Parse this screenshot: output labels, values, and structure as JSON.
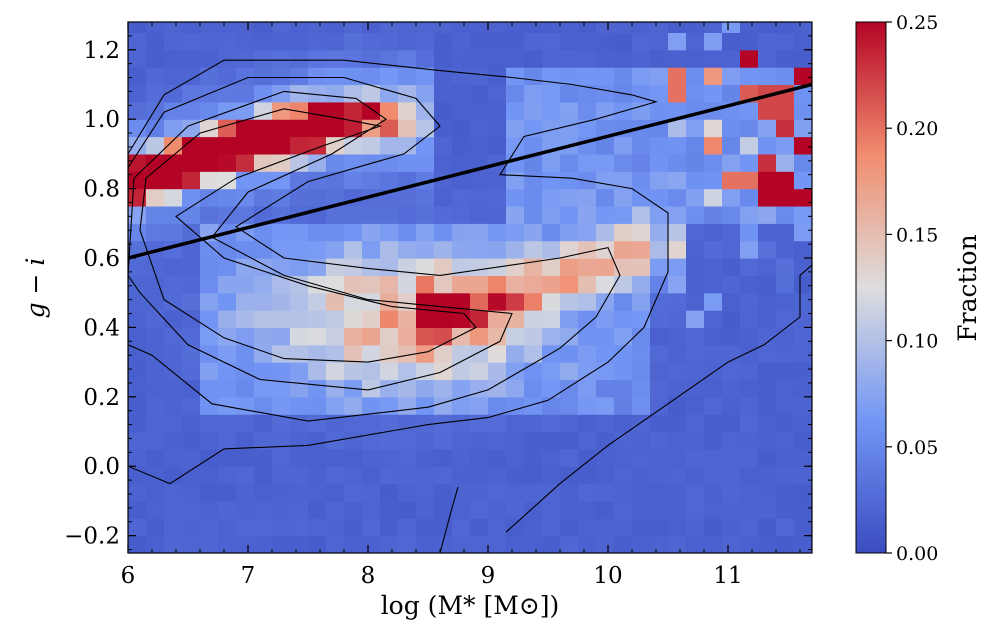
{
  "chart_data": {
    "type": "heatmap",
    "title": "",
    "xlabel": "log (M* [M⊙])",
    "ylabel": "g − i",
    "colorbar_label": "Fraction",
    "xlim": [
      6.0,
      11.7
    ],
    "ylim": [
      -0.25,
      1.28
    ],
    "clim": [
      0.0,
      0.25
    ],
    "colormap": "coolwarm",
    "x_ticks": [
      6,
      7,
      8,
      9,
      10,
      11
    ],
    "x_tick_labels": [
      "6",
      "7",
      "8",
      "9",
      "10",
      "11"
    ],
    "y_ticks": [
      -0.2,
      0.0,
      0.2,
      0.4,
      0.6,
      0.8,
      1.0,
      1.2
    ],
    "y_tick_labels": [
      "−0.2",
      "0.0",
      "0.2",
      "0.4",
      "0.6",
      "0.8",
      "1.0",
      "1.2"
    ],
    "colorbar_ticks": [
      0.0,
      0.05,
      0.1,
      0.15,
      0.2,
      0.25
    ],
    "colorbar_tick_labels": [
      "0.00",
      "0.05",
      "0.10",
      "0.15",
      "0.20",
      "0.25"
    ],
    "heatmap_bins": {
      "x_start": 6.0,
      "dx": 0.15,
      "nx": 38,
      "y_start": -0.25,
      "dy": 0.05,
      "ny": 31
    },
    "red_sequence_ridge": [
      [
        6.0,
        0.82
      ],
      [
        6.5,
        0.88
      ],
      [
        7.0,
        0.93
      ],
      [
        7.5,
        0.98
      ],
      [
        8.0,
        1.0
      ],
      [
        8.3,
        1.0
      ]
    ],
    "blue_cloud_center": [
      8.3,
      0.42
    ],
    "blue_cloud_tail": [
      [
        8.6,
        0.45
      ],
      [
        9.0,
        0.48
      ],
      [
        9.4,
        0.52
      ],
      [
        9.8,
        0.58
      ],
      [
        10.2,
        0.63
      ]
    ],
    "hot_bins": [
      {
        "x": 11.2,
        "y": 1.17,
        "v": 0.25
      },
      {
        "x": 11.6,
        "y": 1.12,
        "v": 0.25
      },
      {
        "x": 11.4,
        "y": 1.05,
        "v": 0.22
      },
      {
        "x": 11.5,
        "y": 0.98,
        "v": 0.23
      },
      {
        "x": 11.6,
        "y": 0.92,
        "v": 0.25
      },
      {
        "x": 11.3,
        "y": 0.88,
        "v": 0.23
      },
      {
        "x": 11.1,
        "y": 0.82,
        "v": 0.2
      },
      {
        "x": 11.6,
        "y": 0.78,
        "v": 0.25
      },
      {
        "x": 11.5,
        "y": 0.8,
        "v": 0.25
      },
      {
        "x": 11.3,
        "y": 0.8,
        "v": 0.25
      },
      {
        "x": 11.2,
        "y": 1.07,
        "v": 0.21
      },
      {
        "x": 10.9,
        "y": 0.93,
        "v": 0.19
      },
      {
        "x": 10.6,
        "y": 1.1,
        "v": 0.2
      },
      {
        "x": 10.9,
        "y": 1.12,
        "v": 0.18
      }
    ],
    "dividing_line": {
      "x": [
        6.0,
        11.7
      ],
      "y": [
        0.6,
        1.1
      ]
    },
    "contours": [
      [
        [
          6.0,
          0.56
        ],
        [
          6.0,
          0.9
        ],
        [
          6.3,
          1.07
        ],
        [
          6.8,
          1.17
        ],
        [
          7.8,
          1.17
        ],
        [
          8.6,
          1.14
        ],
        [
          9.2,
          1.12
        ],
        [
          9.7,
          1.1
        ],
        [
          10.2,
          1.07
        ],
        [
          10.4,
          1.05
        ],
        [
          9.9,
          1.0
        ],
        [
          9.3,
          0.95
        ],
        [
          9.1,
          0.84
        ],
        [
          9.7,
          0.83
        ],
        [
          10.2,
          0.8
        ],
        [
          10.5,
          0.73
        ],
        [
          10.5,
          0.56
        ],
        [
          10.3,
          0.4
        ],
        [
          10.0,
          0.3
        ],
        [
          9.5,
          0.19
        ],
        [
          9.0,
          0.14
        ],
        [
          8.5,
          0.12
        ],
        [
          7.5,
          0.06
        ],
        [
          6.8,
          0.05
        ],
        [
          6.35,
          -0.05
        ],
        [
          6.0,
          0.0
        ]
      ],
      [
        [
          6.0,
          0.35
        ],
        [
          6.0,
          0.86
        ],
        [
          6.3,
          1.02
        ],
        [
          7.0,
          1.12
        ],
        [
          7.8,
          1.12
        ],
        [
          8.4,
          1.06
        ],
        [
          8.6,
          0.98
        ],
        [
          8.3,
          0.9
        ],
        [
          7.5,
          0.82
        ],
        [
          6.9,
          0.69
        ],
        [
          7.3,
          0.6
        ],
        [
          8.0,
          0.57
        ],
        [
          8.6,
          0.55
        ],
        [
          9.6,
          0.6
        ],
        [
          10.0,
          0.63
        ],
        [
          10.1,
          0.55
        ],
        [
          9.9,
          0.43
        ],
        [
          9.6,
          0.34
        ],
        [
          9.0,
          0.22
        ],
        [
          8.5,
          0.17
        ],
        [
          7.5,
          0.13
        ],
        [
          6.7,
          0.18
        ],
        [
          6.2,
          0.32
        ]
      ],
      [
        [
          6.0,
          0.55
        ],
        [
          6.05,
          0.83
        ],
        [
          6.5,
          0.98
        ],
        [
          7.3,
          1.08
        ],
        [
          7.9,
          1.06
        ],
        [
          8.15,
          1.0
        ],
        [
          7.7,
          0.9
        ],
        [
          7.0,
          0.79
        ],
        [
          6.7,
          0.66
        ],
        [
          7.3,
          0.55
        ],
        [
          8.0,
          0.48
        ],
        [
          8.6,
          0.46
        ],
        [
          9.2,
          0.44
        ],
        [
          9.1,
          0.36
        ],
        [
          8.6,
          0.27
        ],
        [
          8.0,
          0.22
        ],
        [
          7.1,
          0.25
        ],
        [
          6.5,
          0.35
        ],
        [
          6.1,
          0.5
        ]
      ],
      [
        [
          6.15,
          0.83
        ],
        [
          6.6,
          0.96
        ],
        [
          7.3,
          1.03
        ],
        [
          7.8,
          1.0
        ],
        [
          8.1,
          0.98
        ],
        [
          7.6,
          0.92
        ],
        [
          6.9,
          0.83
        ],
        [
          6.4,
          0.72
        ],
        [
          6.8,
          0.6
        ],
        [
          7.5,
          0.52
        ],
        [
          8.2,
          0.46
        ],
        [
          8.8,
          0.44
        ],
        [
          8.9,
          0.4
        ],
        [
          8.5,
          0.33
        ],
        [
          8.0,
          0.3
        ],
        [
          7.3,
          0.31
        ],
        [
          6.8,
          0.37
        ],
        [
          6.3,
          0.48
        ],
        [
          6.1,
          0.68
        ]
      ],
      [
        [
          9.15,
          -0.19
        ],
        [
          9.6,
          -0.05
        ],
        [
          10.0,
          0.06
        ],
        [
          10.5,
          0.18
        ],
        [
          11.0,
          0.3
        ],
        [
          11.3,
          0.35
        ],
        [
          11.6,
          0.43
        ],
        [
          11.6,
          0.55
        ],
        [
          11.7,
          0.58
        ]
      ],
      [
        [
          8.4,
          -0.25
        ],
        [
          8.5,
          -0.25
        ],
        [
          8.6,
          -0.25
        ],
        [
          8.7,
          -0.12
        ],
        [
          8.75,
          -0.06
        ]
      ]
    ]
  }
}
